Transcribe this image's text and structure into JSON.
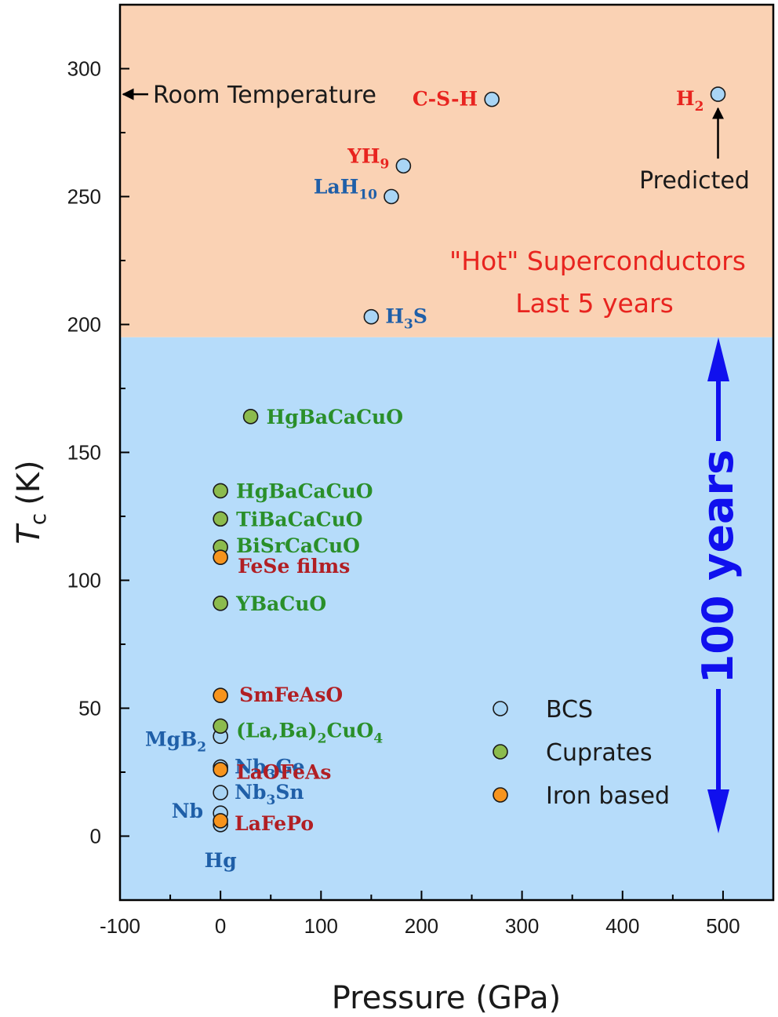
{
  "chart_data": {
    "type": "scatter",
    "xlabel": "Pressure (GPa)",
    "ylabel_main": "T",
    "ylabel_sub": "c",
    "ylabel_unit": "(K)",
    "xlim": [
      -100,
      550
    ],
    "ylim": [
      -25,
      325
    ],
    "x_ticks": [
      -100,
      0,
      100,
      200,
      300,
      400,
      500
    ],
    "y_ticks": [
      0,
      50,
      100,
      150,
      200,
      250,
      300
    ],
    "regions": [
      {
        "y_from": 195,
        "y_to": 325,
        "color": "#fad2b4"
      },
      {
        "y_from": -25,
        "y_to": 195,
        "color": "#b6dcfa"
      }
    ],
    "series": [
      {
        "name": "BCS",
        "color": "#a9d5f5",
        "points": [
          {
            "x": 270,
            "y": 288,
            "label": "C-S-H",
            "label_color": "#e8241f"
          },
          {
            "x": 495,
            "y": 290,
            "label": "H",
            "sub": "2",
            "label_color": "#e8241f"
          },
          {
            "x": 182,
            "y": 262,
            "label": "YH",
            "sub": "9",
            "label_color": "#e8241f"
          },
          {
            "x": 170,
            "y": 250,
            "label": "LaH",
            "sub": "10",
            "label_color": "#1f5fa8"
          },
          {
            "x": 150,
            "y": 203,
            "label": "H",
            "sub": "3",
            "tail": "S",
            "label_color": "#1f5fa8"
          },
          {
            "x": 0,
            "y": 39,
            "label": "MgB",
            "sub": "2",
            "label_color": "#1f5fa8"
          },
          {
            "x": 0,
            "y": 27,
            "label": "Nb",
            "sub": "3",
            "tail": "Ge",
            "label_color": "#1f5fa8"
          },
          {
            "x": 0,
            "y": 17,
            "label": "Nb",
            "sub": "3",
            "tail": "Sn",
            "label_color": "#1f5fa8"
          },
          {
            "x": 0,
            "y": 9,
            "label": "Nb",
            "label_color": "#1f5fa8"
          },
          {
            "x": 0,
            "y": 4.5,
            "label": "Hg",
            "label_color": "#1f5fa8"
          }
        ]
      },
      {
        "name": "Cuprates",
        "color": "#8cbb4d",
        "points": [
          {
            "x": 30,
            "y": 164,
            "label": "HgBaCaCuO",
            "label_color": "#2a8f2a"
          },
          {
            "x": 0,
            "y": 135,
            "label": "HgBaCaCuO",
            "label_color": "#2a8f2a"
          },
          {
            "x": 0,
            "y": 124,
            "label": "TiBaCaCuO",
            "label_color": "#2a8f2a"
          },
          {
            "x": 0,
            "y": 113,
            "label": "BiSrCaCuO",
            "label_color": "#2a8f2a"
          },
          {
            "x": 0,
            "y": 91,
            "label": "YBaCuO",
            "label_color": "#2a8f2a"
          },
          {
            "x": 0,
            "y": 43,
            "label": "(La,Ba)",
            "sub": "2",
            "tail": "CuO",
            "sub2": "4",
            "label_color": "#2a8f2a"
          }
        ]
      },
      {
        "name": "Iron based",
        "color": "#f7941d",
        "points": [
          {
            "x": 0,
            "y": 109,
            "label": "FeSe films",
            "label_color": "#b11f24"
          },
          {
            "x": 0,
            "y": 55,
            "label": "SmFeAsO",
            "label_color": "#b11f24"
          },
          {
            "x": 0,
            "y": 26,
            "label": "LaOFeAs",
            "label_color": "#b11f24"
          },
          {
            "x": 0,
            "y": 6,
            "label": "LaFePo",
            "label_color": "#b11f24"
          }
        ]
      }
    ],
    "annotations": {
      "room_temperature": "Room Temperature",
      "room_temperature_y": 290,
      "predicted": "Predicted",
      "hot_line1": "\"Hot\" Superconductors",
      "hot_line2": "Last 5 years",
      "hundred_years": "100 years"
    },
    "legend": {
      "placement": "lower-right",
      "entries": [
        "BCS",
        "Cuprates",
        "Iron based"
      ]
    }
  }
}
